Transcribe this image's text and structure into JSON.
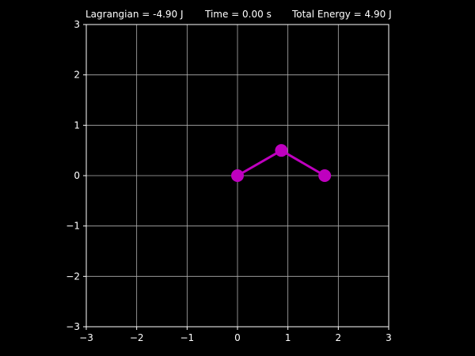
{
  "header": {
    "lagrangian": "Lagrangian = -4.90 J",
    "time": "Time = 0.00 s",
    "total_energy": "Total Energy = 4.90 J"
  },
  "colors": {
    "background": "#000000",
    "grid": "#b0b0b0",
    "axis_text": "#ffffff",
    "pendulum": "#bf00bf"
  },
  "chart_data": {
    "type": "line",
    "title": "",
    "xlabel": "",
    "ylabel": "",
    "xlim": [
      -3,
      3
    ],
    "ylim": [
      -3,
      3
    ],
    "grid": true,
    "x_ticks": [
      -3,
      -2,
      -1,
      0,
      1,
      2,
      3
    ],
    "y_ticks": [
      -3,
      -2,
      -1,
      0,
      1,
      2,
      3
    ],
    "x_tick_labels": [
      "−3",
      "−2",
      "−1",
      "0",
      "1",
      "2",
      "3"
    ],
    "y_tick_labels": [
      "−3",
      "−2",
      "−1",
      "0",
      "1",
      "2",
      "3"
    ],
    "series": [
      {
        "points": [
          {
            "x": 0,
            "y": 0
          },
          {
            "x": 0.87,
            "y": 0.5
          },
          {
            "x": 1.73,
            "y": 0
          }
        ]
      }
    ]
  }
}
